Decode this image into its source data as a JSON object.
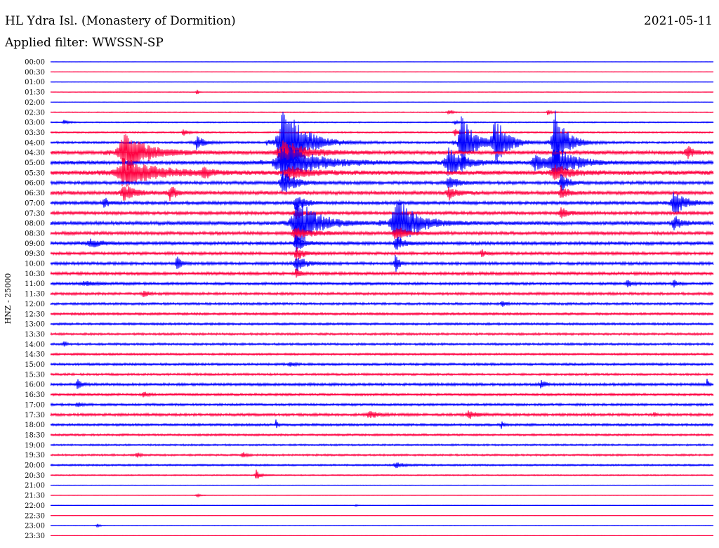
{
  "header": {
    "station": "HL Ydra Isl. (Monastery of Dormition)",
    "date": "2021-05-11",
    "filter": "Applied filter: WWSSN-SP"
  },
  "chart_data": {
    "type": "helicorder",
    "ylabel": "HNZ - 25000",
    "colors": {
      "blue": "#0000ff",
      "red": "#ff0040"
    },
    "rows": [
      {
        "time": "00:00",
        "color": "blue",
        "noise": 0.2,
        "events": []
      },
      {
        "time": "00:30",
        "color": "red",
        "noise": 0.3,
        "events": []
      },
      {
        "time": "01:00",
        "color": "blue",
        "noise": 0.3,
        "events": []
      },
      {
        "time": "01:30",
        "color": "red",
        "noise": 0.4,
        "events": [
          {
            "x": 0.22,
            "amp": 8,
            "w": 0.004
          }
        ]
      },
      {
        "time": "02:00",
        "color": "blue",
        "noise": 0.4,
        "events": []
      },
      {
        "time": "02:30",
        "color": "red",
        "noise": 0.6,
        "events": [
          {
            "x": 0.6,
            "amp": 5,
            "w": 0.01
          },
          {
            "x": 0.75,
            "amp": 4,
            "w": 0.01
          }
        ]
      },
      {
        "time": "03:00",
        "color": "blue",
        "noise": 0.8,
        "events": [
          {
            "x": 0.02,
            "amp": 4,
            "w": 0.01
          },
          {
            "x": 0.61,
            "amp": 3,
            "w": 0.01
          }
        ]
      },
      {
        "time": "03:30",
        "color": "red",
        "noise": 1.0,
        "events": [
          {
            "x": 0.2,
            "amp": 6,
            "w": 0.01
          },
          {
            "x": 0.61,
            "amp": 6,
            "w": 0.01
          }
        ]
      },
      {
        "time": "04:00",
        "color": "blue",
        "noise": 1.5,
        "events": [
          {
            "x": 0.22,
            "amp": 10,
            "w": 0.02
          },
          {
            "x": 0.35,
            "amp": 60,
            "w": 0.05
          },
          {
            "x": 0.62,
            "amp": 45,
            "w": 0.03
          },
          {
            "x": 0.67,
            "amp": 40,
            "w": 0.03
          },
          {
            "x": 0.76,
            "amp": 50,
            "w": 0.03
          }
        ]
      },
      {
        "time": "04:30",
        "color": "red",
        "noise": 2.5,
        "events": [
          {
            "x": 0.11,
            "amp": 30,
            "w": 0.06
          },
          {
            "x": 0.35,
            "amp": 18,
            "w": 0.06
          },
          {
            "x": 0.96,
            "amp": 10,
            "w": 0.02
          }
        ]
      },
      {
        "time": "05:00",
        "color": "blue",
        "noise": 2.5,
        "events": [
          {
            "x": 0.35,
            "amp": 28,
            "w": 0.08
          },
          {
            "x": 0.6,
            "amp": 22,
            "w": 0.04
          },
          {
            "x": 0.73,
            "amp": 12,
            "w": 0.03
          },
          {
            "x": 0.76,
            "amp": 25,
            "w": 0.05
          }
        ]
      },
      {
        "time": "05:30",
        "color": "red",
        "noise": 3.0,
        "events": [
          {
            "x": 0.11,
            "amp": 22,
            "w": 0.08
          },
          {
            "x": 0.23,
            "amp": 8,
            "w": 0.02
          },
          {
            "x": 0.36,
            "amp": 10,
            "w": 0.05
          },
          {
            "x": 0.76,
            "amp": 12,
            "w": 0.04
          }
        ]
      },
      {
        "time": "06:00",
        "color": "blue",
        "noise": 2.2,
        "events": [
          {
            "x": 0.35,
            "amp": 18,
            "w": 0.03
          },
          {
            "x": 0.6,
            "amp": 12,
            "w": 0.02
          },
          {
            "x": 0.77,
            "amp": 12,
            "w": 0.02
          }
        ]
      },
      {
        "time": "06:30",
        "color": "red",
        "noise": 2.5,
        "events": [
          {
            "x": 0.11,
            "amp": 12,
            "w": 0.03
          },
          {
            "x": 0.18,
            "amp": 12,
            "w": 0.015
          },
          {
            "x": 0.6,
            "amp": 10,
            "w": 0.02
          },
          {
            "x": 0.77,
            "amp": 10,
            "w": 0.02
          }
        ]
      },
      {
        "time": "07:00",
        "color": "blue",
        "noise": 2.2,
        "events": [
          {
            "x": 0.08,
            "amp": 10,
            "w": 0.01
          },
          {
            "x": 0.37,
            "amp": 14,
            "w": 0.02
          },
          {
            "x": 0.94,
            "amp": 18,
            "w": 0.03
          }
        ]
      },
      {
        "time": "07:30",
        "color": "red",
        "noise": 2.2,
        "events": [
          {
            "x": 0.37,
            "amp": 8,
            "w": 0.02
          },
          {
            "x": 0.77,
            "amp": 8,
            "w": 0.02
          }
        ]
      },
      {
        "time": "08:00",
        "color": "blue",
        "noise": 2.5,
        "events": [
          {
            "x": 0.37,
            "amp": 40,
            "w": 0.05
          },
          {
            "x": 0.52,
            "amp": 40,
            "w": 0.05
          },
          {
            "x": 0.94,
            "amp": 12,
            "w": 0.02
          }
        ]
      },
      {
        "time": "08:30",
        "color": "red",
        "noise": 2.2,
        "events": [
          {
            "x": 0.37,
            "amp": 10,
            "w": 0.04
          },
          {
            "x": 0.52,
            "amp": 10,
            "w": 0.03
          }
        ]
      },
      {
        "time": "09:00",
        "color": "blue",
        "noise": 2.2,
        "events": [
          {
            "x": 0.06,
            "amp": 6,
            "w": 0.03
          },
          {
            "x": 0.37,
            "amp": 12,
            "w": 0.02
          },
          {
            "x": 0.52,
            "amp": 12,
            "w": 0.02
          }
        ]
      },
      {
        "time": "09:30",
        "color": "red",
        "noise": 2.0,
        "events": [
          {
            "x": 0.37,
            "amp": 10,
            "w": 0.02
          },
          {
            "x": 0.65,
            "amp": 6,
            "w": 0.01
          }
        ]
      },
      {
        "time": "10:00",
        "color": "blue",
        "noise": 2.0,
        "events": [
          {
            "x": 0.19,
            "amp": 12,
            "w": 0.01
          },
          {
            "x": 0.37,
            "amp": 14,
            "w": 0.02
          },
          {
            "x": 0.52,
            "amp": 14,
            "w": 0.01
          }
        ]
      },
      {
        "time": "10:30",
        "color": "red",
        "noise": 2.0,
        "events": [
          {
            "x": 0.37,
            "amp": 8,
            "w": 0.01
          }
        ]
      },
      {
        "time": "11:00",
        "color": "blue",
        "noise": 1.8,
        "events": [
          {
            "x": 0.05,
            "amp": 4,
            "w": 0.03
          },
          {
            "x": 0.87,
            "amp": 6,
            "w": 0.01
          },
          {
            "x": 0.94,
            "amp": 6,
            "w": 0.01
          }
        ]
      },
      {
        "time": "11:30",
        "color": "red",
        "noise": 1.8,
        "events": [
          {
            "x": 0.14,
            "amp": 6,
            "w": 0.01
          }
        ]
      },
      {
        "time": "12:00",
        "color": "blue",
        "noise": 1.6,
        "events": [
          {
            "x": 0.68,
            "amp": 5,
            "w": 0.01
          }
        ]
      },
      {
        "time": "12:30",
        "color": "red",
        "noise": 1.6,
        "events": []
      },
      {
        "time": "13:00",
        "color": "blue",
        "noise": 1.5,
        "events": []
      },
      {
        "time": "13:30",
        "color": "red",
        "noise": 1.5,
        "events": []
      },
      {
        "time": "14:00",
        "color": "blue",
        "noise": 1.5,
        "events": [
          {
            "x": 0.02,
            "amp": 5,
            "w": 0.005
          }
        ]
      },
      {
        "time": "14:30",
        "color": "red",
        "noise": 1.4,
        "events": []
      },
      {
        "time": "15:00",
        "color": "blue",
        "noise": 1.6,
        "events": [
          {
            "x": 0.36,
            "amp": 4,
            "w": 0.01
          }
        ]
      },
      {
        "time": "15:30",
        "color": "red",
        "noise": 1.5,
        "events": []
      },
      {
        "time": "16:00",
        "color": "blue",
        "noise": 1.8,
        "events": [
          {
            "x": 0.04,
            "amp": 8,
            "w": 0.01
          },
          {
            "x": 0.74,
            "amp": 8,
            "w": 0.01
          },
          {
            "x": 0.99,
            "amp": 8,
            "w": 0.005
          }
        ]
      },
      {
        "time": "16:30",
        "color": "red",
        "noise": 1.6,
        "events": [
          {
            "x": 0.14,
            "amp": 5,
            "w": 0.01
          }
        ]
      },
      {
        "time": "17:00",
        "color": "blue",
        "noise": 1.6,
        "events": [
          {
            "x": 0.04,
            "amp": 4,
            "w": 0.01
          }
        ]
      },
      {
        "time": "17:30",
        "color": "red",
        "noise": 1.8,
        "events": [
          {
            "x": 0.48,
            "amp": 6,
            "w": 0.02
          },
          {
            "x": 0.63,
            "amp": 6,
            "w": 0.02
          },
          {
            "x": 0.91,
            "amp": 6,
            "w": 0.005
          }
        ]
      },
      {
        "time": "18:00",
        "color": "blue",
        "noise": 1.6,
        "events": [
          {
            "x": 0.34,
            "amp": 6,
            "w": 0.005
          },
          {
            "x": 0.68,
            "amp": 6,
            "w": 0.005
          }
        ]
      },
      {
        "time": "18:30",
        "color": "red",
        "noise": 1.4,
        "events": []
      },
      {
        "time": "19:00",
        "color": "blue",
        "noise": 1.2,
        "events": []
      },
      {
        "time": "19:30",
        "color": "red",
        "noise": 1.3,
        "events": [
          {
            "x": 0.13,
            "amp": 4,
            "w": 0.01
          },
          {
            "x": 0.29,
            "amp": 4,
            "w": 0.01
          }
        ]
      },
      {
        "time": "20:00",
        "color": "blue",
        "noise": 1.2,
        "events": [
          {
            "x": 0.52,
            "amp": 4,
            "w": 0.02
          }
        ]
      },
      {
        "time": "20:30",
        "color": "red",
        "noise": 0.8,
        "events": [
          {
            "x": 0.31,
            "amp": 8,
            "w": 0.01
          }
        ]
      },
      {
        "time": "21:00",
        "color": "blue",
        "noise": 0.4,
        "events": []
      },
      {
        "time": "21:30",
        "color": "red",
        "noise": 0.3,
        "events": [
          {
            "x": 0.22,
            "amp": 3,
            "w": 0.01
          }
        ]
      },
      {
        "time": "22:00",
        "color": "blue",
        "noise": 0.3,
        "events": [
          {
            "x": 0.46,
            "amp": 2,
            "w": 0.005
          }
        ]
      },
      {
        "time": "22:30",
        "color": "red",
        "noise": 0.3,
        "events": []
      },
      {
        "time": "23:00",
        "color": "blue",
        "noise": 0.4,
        "events": [
          {
            "x": 0.07,
            "amp": 4,
            "w": 0.006
          }
        ]
      },
      {
        "time": "23:30",
        "color": "red",
        "noise": 0.2,
        "events": []
      }
    ]
  }
}
